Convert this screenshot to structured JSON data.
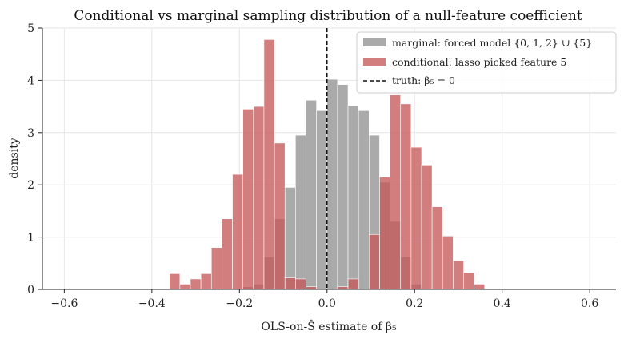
{
  "chart_data": {
    "type": "bar",
    "title": "Conditional vs marginal sampling distribution of a null-feature coefficient",
    "xlabel": "OLS-on-Ŝ estimate of β₅",
    "ylabel": "density",
    "xlim": [
      -0.65,
      0.66
    ],
    "ylim": [
      0,
      5
    ],
    "xticks": [
      "−0.6",
      "−0.4",
      "−0.2",
      "0.0",
      "0.2",
      "0.4",
      "0.6"
    ],
    "xtick_values": [
      -0.6,
      -0.4,
      -0.2,
      0.0,
      0.2,
      0.4,
      0.6
    ],
    "yticks": [
      "0",
      "1",
      "2",
      "3",
      "4",
      "5"
    ],
    "ytick_values": [
      0,
      1,
      2,
      3,
      4,
      5
    ],
    "grid": true,
    "legend_position": "top-right",
    "bin_width": 0.024,
    "series": [
      {
        "name": "marginal: forced model {0, 1, 2} ∪ {5}",
        "color": "#aaaaaa",
        "bin_left": [
          -0.192,
          -0.168,
          -0.144,
          -0.12,
          -0.096,
          -0.072,
          -0.048,
          -0.024,
          0.0,
          0.024,
          0.048,
          0.072,
          0.096,
          0.12,
          0.144,
          0.168,
          0.192
        ],
        "values": [
          0.05,
          0.1,
          0.62,
          1.35,
          1.95,
          2.95,
          3.62,
          3.42,
          4.02,
          3.92,
          3.52,
          3.42,
          2.95,
          2.05,
          1.3,
          0.62,
          0.1
        ]
      },
      {
        "name": "conditional: lasso picked feature 5",
        "color": "#c75a5a",
        "bin_left": [
          -0.36,
          -0.336,
          -0.312,
          -0.288,
          -0.264,
          -0.24,
          -0.216,
          -0.192,
          -0.168,
          -0.144,
          -0.12,
          -0.096,
          -0.072,
          -0.048,
          -0.024,
          0.0,
          0.024,
          0.048,
          0.072,
          0.096,
          0.12,
          0.144,
          0.168,
          0.192,
          0.216,
          0.24,
          0.264,
          0.288,
          0.312,
          0.336
        ],
        "values": [
          0.3,
          0.1,
          0.2,
          0.3,
          0.8,
          1.35,
          2.2,
          3.45,
          3.5,
          4.78,
          2.8,
          0.22,
          0.2,
          0.05,
          0.0,
          0.0,
          0.05,
          0.2,
          0.0,
          1.05,
          2.15,
          3.72,
          3.55,
          2.72,
          2.38,
          1.58,
          1.02,
          0.55,
          0.32,
          0.1
        ]
      }
    ],
    "reference_line": {
      "name": "truth: β₅ = 0",
      "x": 0.0,
      "style": "dashed",
      "color": "#111111"
    }
  }
}
